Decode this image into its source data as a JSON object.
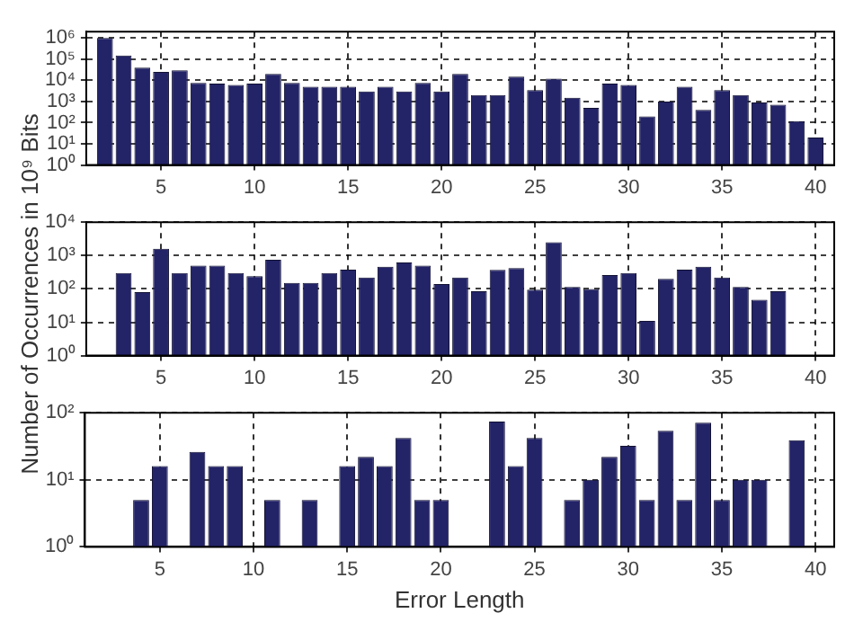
{
  "chart_data": [
    {
      "type": "bar",
      "ylabel": "Number of Occurrences in 10⁹ Bits",
      "color": "#232368",
      "log": "y",
      "grid": true,
      "x": [
        2,
        3,
        4,
        5,
        6,
        7,
        8,
        9,
        10,
        11,
        12,
        13,
        14,
        15,
        16,
        17,
        18,
        19,
        20,
        21,
        22,
        23,
        24,
        25,
        26,
        27,
        28,
        29,
        30,
        31,
        32,
        33,
        34,
        35,
        36,
        37,
        38,
        39,
        40
      ],
      "values": [
        1000000,
        150000,
        40000,
        25000,
        30000,
        7500,
        7000,
        6000,
        7000,
        20000,
        7500,
        5000,
        5000,
        5000,
        3000,
        5000,
        3000,
        7500,
        3000,
        20000,
        2000,
        2000,
        15000,
        3500,
        12000,
        1500,
        500,
        7000,
        6000,
        200,
        1000,
        5000,
        400,
        3500,
        2000,
        900,
        700,
        120,
        20
      ],
      "xlim": [
        1,
        41
      ],
      "xticks": [
        5,
        10,
        15,
        20,
        25,
        30,
        35,
        40
      ],
      "ylim": [
        1,
        2000000
      ],
      "yticks": [
        {
          "value": 1,
          "label": "10⁰"
        },
        {
          "value": 10,
          "label": "10¹"
        },
        {
          "value": 100,
          "label": "10²"
        },
        {
          "value": 1000,
          "label": "10³"
        },
        {
          "value": 10000,
          "label": "10⁴"
        },
        {
          "value": 100000,
          "label": "10⁵"
        },
        {
          "value": 1000000,
          "label": "10⁶"
        }
      ]
    },
    {
      "type": "bar",
      "color": "#232368",
      "log": "y",
      "grid": true,
      "x": [
        3,
        4,
        5,
        6,
        7,
        8,
        9,
        10,
        11,
        12,
        13,
        14,
        15,
        16,
        17,
        18,
        19,
        20,
        21,
        22,
        23,
        24,
        25,
        26,
        27,
        28,
        29,
        30,
        31,
        32,
        33,
        34,
        35,
        36,
        37,
        38
      ],
      "values": [
        300,
        80,
        1600,
        300,
        500,
        500,
        300,
        240,
        750,
        150,
        150,
        300,
        380,
        220,
        460,
        620,
        500,
        140,
        220,
        85,
        370,
        420,
        95,
        2500,
        115,
        100,
        260,
        300,
        11,
        200,
        380,
        460,
        220,
        115,
        47,
        85
      ],
      "xlim": [
        1,
        41
      ],
      "xticks": [
        5,
        10,
        15,
        20,
        25,
        30,
        35,
        40
      ],
      "ylim": [
        1,
        10000
      ],
      "yticks": [
        {
          "value": 1,
          "label": "10⁰"
        },
        {
          "value": 10,
          "label": "10¹"
        },
        {
          "value": 100,
          "label": "10²"
        },
        {
          "value": 1000,
          "label": "10³"
        },
        {
          "value": 10000,
          "label": "10⁴"
        }
      ]
    },
    {
      "type": "bar",
      "xlabel": "Error Length",
      "color": "#232368",
      "log": "y",
      "grid": true,
      "x": [
        4,
        5,
        7,
        8,
        9,
        11,
        13,
        15,
        16,
        17,
        18,
        19,
        20,
        23,
        24,
        25,
        27,
        28,
        29,
        30,
        31,
        32,
        33,
        34,
        35,
        36,
        37,
        39
      ],
      "values": [
        5,
        16,
        26,
        16,
        16,
        5,
        5,
        16,
        22,
        16,
        42,
        5,
        5,
        74,
        16,
        42,
        5,
        10,
        22,
        32,
        5,
        54,
        5,
        71,
        5,
        10,
        10,
        39
      ],
      "xlim": [
        1,
        41
      ],
      "xticks": [
        5,
        10,
        15,
        20,
        25,
        30,
        35,
        40
      ],
      "ylim": [
        1,
        100
      ],
      "yticks": [
        {
          "value": 1,
          "label": "10⁰"
        },
        {
          "value": 10,
          "label": "10¹"
        },
        {
          "value": 100,
          "label": "10²"
        }
      ]
    }
  ]
}
